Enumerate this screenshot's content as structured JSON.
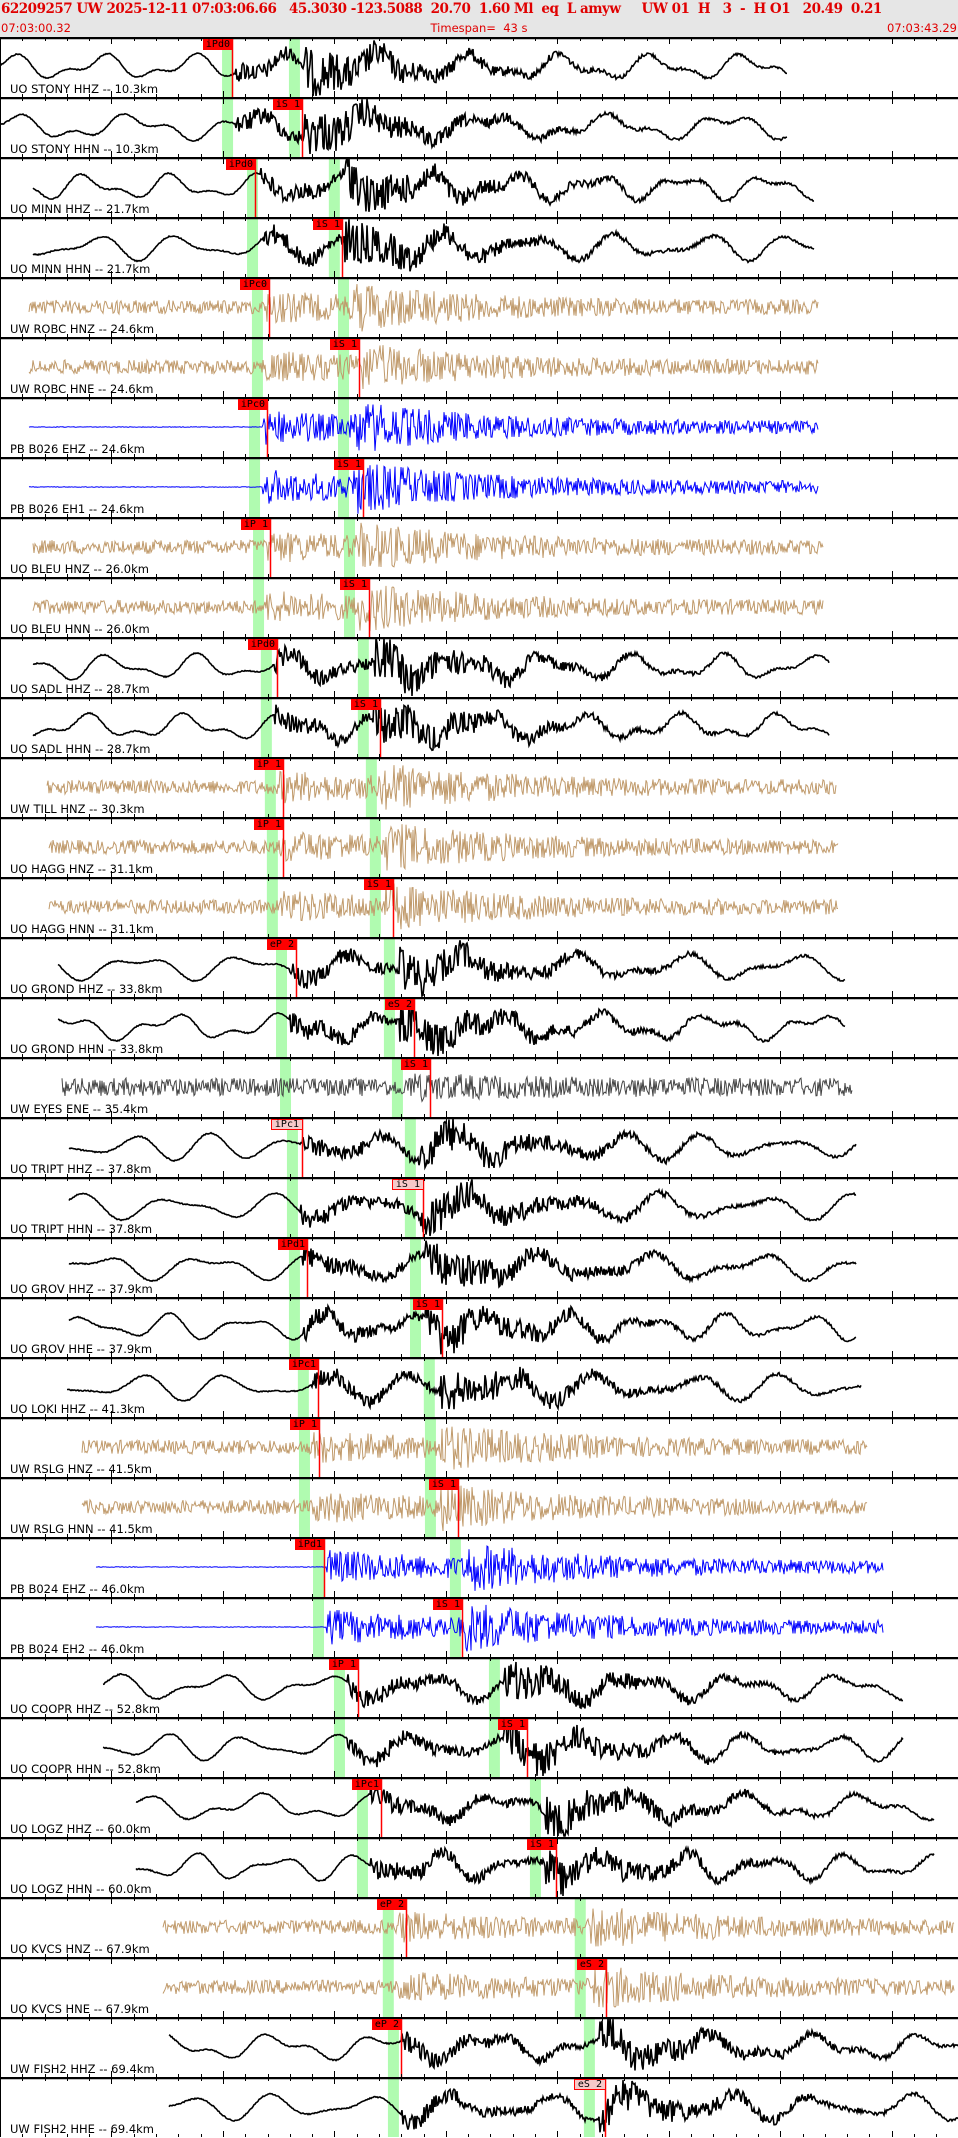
{
  "header": {
    "event_line": "62209257 UW 2025-12-11 07:03:06.66   45.3030 -123.5088  20.70  1.60 Ml  eq  L amyw     UW 01  H   3  -  H O1   20.49  0.21",
    "start_time": "07:03:00.32",
    "timespan": "Timespan=  43 s",
    "end_time": "07:03:43.29"
  },
  "time_axis": {
    "span_s": 42.97,
    "tick_interval_s": 1
  },
  "colors": {
    "header_bg": "#e6e6e6",
    "header_text": "#e00000",
    "pick": "#ff0000",
    "pick_unselected": "#f6c9c9",
    "predicted_band": "#b0fbb0",
    "broadband": "#000000",
    "strong_motion": "#c09a6b",
    "short_period": "#0000ff",
    "accelerometer": "#444444"
  },
  "traces": [
    {
      "label": "UO STONY HHZ -- 10.3km",
      "color": "#000000",
      "start_s": 0,
      "end_s": 35.3,
      "bands": [
        9.96,
        12.96
      ],
      "pick": {
        "label": "iPd0",
        "t": 10.4,
        "selected": true
      }
    },
    {
      "label": "UO STONY HHN -- 10.3km",
      "color": "#000000",
      "start_s": 0,
      "end_s": 35.3,
      "bands": [
        9.96,
        12.96
      ],
      "pick": {
        "label": "iS 1",
        "t": 13.54,
        "selected": true
      }
    },
    {
      "label": "UO MINN HHZ -- 21.7km",
      "color": "#000000",
      "start_s": 1.5,
      "end_s": 36.5,
      "bands": [
        11.08,
        14.75
      ],
      "pick": {
        "label": "iPd0",
        "t": 11.43,
        "selected": true
      }
    },
    {
      "label": "UO MINN HHN -- 21.7km",
      "color": "#000000",
      "start_s": 1.5,
      "end_s": 36.5,
      "bands": [
        11.08,
        14.75
      ],
      "pick": {
        "label": "iS 1",
        "t": 15.34,
        "selected": true
      }
    },
    {
      "label": "UW ROBC HNZ -- 24.6km",
      "color": "#c09a6b",
      "start_s": 1.3,
      "end_s": 36.7,
      "bands": [
        11.3,
        15.16
      ],
      "pick": {
        "label": "iPc0",
        "t": 12.06,
        "selected": true
      }
    },
    {
      "label": "UW ROBC HNE -- 24.6km",
      "color": "#c09a6b",
      "start_s": 1.3,
      "end_s": 36.7,
      "bands": [
        11.3,
        15.16
      ],
      "pick": {
        "label": "iS 1",
        "t": 16.1,
        "selected": true
      }
    },
    {
      "label": "PB B026 EHZ -- 24.6km",
      "color": "#0000ff",
      "start_s": 1.3,
      "end_s": 36.7,
      "bands": [
        11.17,
        15.16
      ],
      "pick": {
        "label": "iPc0",
        "t": 11.97,
        "selected": true
      }
    },
    {
      "label": "PB B026 EH1 -- 24.6km",
      "color": "#0000ff",
      "start_s": 1.3,
      "end_s": 36.7,
      "bands": [
        11.17,
        15.16
      ],
      "pick": {
        "label": "iS 1",
        "t": 16.28,
        "selected": true
      }
    },
    {
      "label": "UO BLEU HNZ -- 26.0km",
      "color": "#c09a6b",
      "start_s": 1.5,
      "end_s": 36.9,
      "bands": [
        11.35,
        15.43
      ],
      "pick": {
        "label": "iP 1",
        "t": 12.11,
        "selected": true
      }
    },
    {
      "label": "UO BLEU HNN -- 26.0km",
      "color": "#c09a6b",
      "start_s": 1.5,
      "end_s": 36.9,
      "bands": [
        11.35,
        15.43
      ],
      "pick": {
        "label": "iS 1",
        "t": 16.55,
        "selected": true
      }
    },
    {
      "label": "UO SADL HHZ -- 28.7km",
      "color": "#000000",
      "start_s": 1.5,
      "end_s": 37.2,
      "bands": [
        11.7,
        16.05
      ],
      "pick": {
        "label": "iPd0",
        "t": 12.42,
        "selected": true
      }
    },
    {
      "label": "UO SADL HHN -- 28.7km",
      "color": "#000000",
      "start_s": 1.5,
      "end_s": 37.2,
      "bands": [
        11.7,
        16.05
      ],
      "pick": {
        "label": "iS 1",
        "t": 17.04,
        "selected": true
      }
    },
    {
      "label": "UW TILL HNZ -- 30.3km",
      "color": "#c09a6b",
      "start_s": 2.1,
      "end_s": 37.5,
      "bands": [
        11.88,
        16.41
      ],
      "pick": {
        "label": "iP 1",
        "t": 12.69,
        "selected": true
      }
    },
    {
      "label": "UO HAGG HNZ -- 31.1km",
      "color": "#c09a6b",
      "start_s": 2.2,
      "end_s": 37.6,
      "bands": [
        11.97,
        16.59
      ],
      "pick": {
        "label": "iP 1",
        "t": 12.69,
        "selected": true
      }
    },
    {
      "label": "UO HAGG HNN -- 31.1km",
      "color": "#c09a6b",
      "start_s": 2.2,
      "end_s": 37.6,
      "bands": [
        11.97,
        16.59
      ],
      "pick": {
        "label": "iS 1",
        "t": 17.62,
        "selected": true
      }
    },
    {
      "label": "UO GROND HHZ -- 33.8km",
      "color": "#000000",
      "start_s": 2.6,
      "end_s": 37.9,
      "bands": [
        12.38,
        17.22
      ],
      "pick": {
        "label": "eP 2",
        "t": 13.27,
        "selected": true
      }
    },
    {
      "label": "UO GROND HHN -- 33.8km",
      "color": "#000000",
      "start_s": 2.6,
      "end_s": 37.9,
      "bands": [
        12.38,
        17.22
      ],
      "pick": {
        "label": "eS 2",
        "t": 18.57,
        "selected": true
      }
    },
    {
      "label": "UW EYES ENE -- 35.4km",
      "color": "#444444",
      "start_s": 2.8,
      "end_s": 38.2,
      "bands": [
        12.56,
        17.58
      ],
      "pick": {
        "label": "iS 1",
        "t": 19.28,
        "selected": true
      }
    },
    {
      "label": "UO TRIPT HHZ -- 37.8km",
      "color": "#000000",
      "start_s": 3.1,
      "end_s": 38.4,
      "bands": [
        12.87,
        18.16
      ],
      "pick": {
        "label": "iPc1",
        "t": 13.54,
        "selected": false
      }
    },
    {
      "label": "UO TRIPT HHN -- 37.8km",
      "color": "#000000",
      "start_s": 3.1,
      "end_s": 38.4,
      "bands": [
        12.87,
        18.16
      ],
      "pick": {
        "label": "iS 1",
        "t": 18.97,
        "selected": false
      }
    },
    {
      "label": "UO GROV HHZ -- 37.9km",
      "color": "#000000",
      "start_s": 3.1,
      "end_s": 38.4,
      "bands": [
        12.96,
        18.39
      ],
      "pick": {
        "label": "iPd1",
        "t": 13.77,
        "selected": true
      }
    },
    {
      "label": "UO GROV HHE -- 37.9km",
      "color": "#000000",
      "start_s": 3.1,
      "end_s": 38.4,
      "bands": [
        12.96,
        18.39
      ],
      "pick": {
        "label": "iS 1",
        "t": 19.82,
        "selected": true
      }
    },
    {
      "label": "UO LOKI HHZ -- 41.3km",
      "color": "#000000",
      "start_s": 3.0,
      "end_s": 38.6,
      "bands": [
        13.36,
        19.01
      ],
      "pick": {
        "label": "iPc1",
        "t": 14.26,
        "selected": true
      }
    },
    {
      "label": "UW RSLG HNZ -- 41.5km",
      "color": "#c09a6b",
      "start_s": 3.7,
      "end_s": 38.9,
      "bands": [
        13.41,
        19.06
      ],
      "pick": {
        "label": "iP 1",
        "t": 14.3,
        "selected": true
      }
    },
    {
      "label": "UW RSLG HNN -- 41.5km",
      "color": "#c09a6b",
      "start_s": 3.7,
      "end_s": 38.9,
      "bands": [
        13.41,
        19.06
      ],
      "pick": {
        "label": "iS 1",
        "t": 20.54,
        "selected": true
      }
    },
    {
      "label": "PB B024 EHZ -- 46.0km",
      "color": "#0000ff",
      "start_s": 4.3,
      "end_s": 39.6,
      "bands": [
        14.04,
        20.18
      ],
      "pick": {
        "label": "iPd1",
        "t": 14.53,
        "selected": true
      }
    },
    {
      "label": "PB B024 EH2 -- 46.0km",
      "color": "#0000ff",
      "start_s": 4.3,
      "end_s": 39.6,
      "bands": [
        14.04,
        20.18
      ],
      "pick": {
        "label": "iS 1",
        "t": 20.72,
        "selected": true
      }
    },
    {
      "label": "UO COOPR HHZ -- 52.8km",
      "color": "#000000",
      "start_s": 4.6,
      "end_s": 40.5,
      "bands": [
        14.98,
        21.93
      ],
      "pick": {
        "label": "iP 1",
        "t": 16.05,
        "selected": true
      }
    },
    {
      "label": "UO COOPR HHN -- 52.8km",
      "color": "#000000",
      "start_s": 4.6,
      "end_s": 40.5,
      "bands": [
        14.98,
        21.93
      ],
      "pick": {
        "label": "iS 1",
        "t": 23.63,
        "selected": true
      }
    },
    {
      "label": "UO LOGZ HHZ -- 60.0km",
      "color": "#000000",
      "start_s": 6.1,
      "end_s": 41.9,
      "bands": [
        16.01,
        23.77
      ],
      "pick": {
        "label": "iPc1",
        "t": 17.09,
        "selected": true
      }
    },
    {
      "label": "UO LOGZ HHN -- 60.0km",
      "color": "#000000",
      "start_s": 6.1,
      "end_s": 41.9,
      "bands": [
        16.01,
        23.77
      ],
      "pick": {
        "label": "iS 1",
        "t": 24.93,
        "selected": true
      }
    },
    {
      "label": "UO KVCS HNZ -- 67.9km",
      "color": "#c09a6b",
      "start_s": 7.3,
      "end_s": 42.8,
      "bands": [
        17.17,
        25.78
      ],
      "pick": {
        "label": "eP 2",
        "t": 18.21,
        "selected": true
      }
    },
    {
      "label": "UO KVCS HNE -- 67.9km",
      "color": "#c09a6b",
      "start_s": 7.3,
      "end_s": 42.8,
      "bands": [
        17.17,
        25.78
      ],
      "pick": {
        "label": "eS 2",
        "t": 27.17,
        "selected": true
      }
    },
    {
      "label": "UW FISH2 HHZ -- 69.4km",
      "color": "#000000",
      "start_s": 7.6,
      "end_s": 42.97,
      "bands": [
        17.4,
        26.19
      ],
      "pick": {
        "label": "eP 2",
        "t": 17.98,
        "selected": true
      }
    },
    {
      "label": "UW FISH2 HHE -- 69.4km",
      "color": "#000000",
      "start_s": 7.6,
      "end_s": 42.97,
      "bands": [
        17.4,
        26.19
      ],
      "pick": {
        "label": "eS 2",
        "t": 27.13,
        "selected": false
      }
    }
  ]
}
